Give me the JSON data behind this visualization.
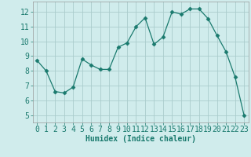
{
  "x": [
    0,
    1,
    2,
    3,
    4,
    5,
    6,
    7,
    8,
    9,
    10,
    11,
    12,
    13,
    14,
    15,
    16,
    17,
    18,
    19,
    20,
    21,
    22,
    23
  ],
  "y": [
    8.7,
    8.0,
    6.6,
    6.5,
    6.9,
    8.8,
    8.4,
    8.1,
    8.1,
    9.6,
    9.9,
    11.0,
    11.6,
    9.8,
    10.3,
    12.0,
    11.85,
    12.2,
    12.2,
    11.55,
    10.4,
    9.3,
    7.6,
    5.0
  ],
  "line_color": "#1a7a6e",
  "marker": "D",
  "marker_size": 2.5,
  "bg_color": "#d0ecec",
  "grid_color": "#aacccc",
  "xlabel": "Humidex (Indice chaleur)",
  "xlim": [
    -0.5,
    23.5
  ],
  "ylim": [
    4.5,
    12.7
  ],
  "yticks": [
    5,
    6,
    7,
    8,
    9,
    10,
    11,
    12
  ],
  "xticks": [
    0,
    1,
    2,
    3,
    4,
    5,
    6,
    7,
    8,
    9,
    10,
    11,
    12,
    13,
    14,
    15,
    16,
    17,
    18,
    19,
    20,
    21,
    22,
    23
  ],
  "xlabel_fontsize": 7,
  "tick_fontsize": 7
}
